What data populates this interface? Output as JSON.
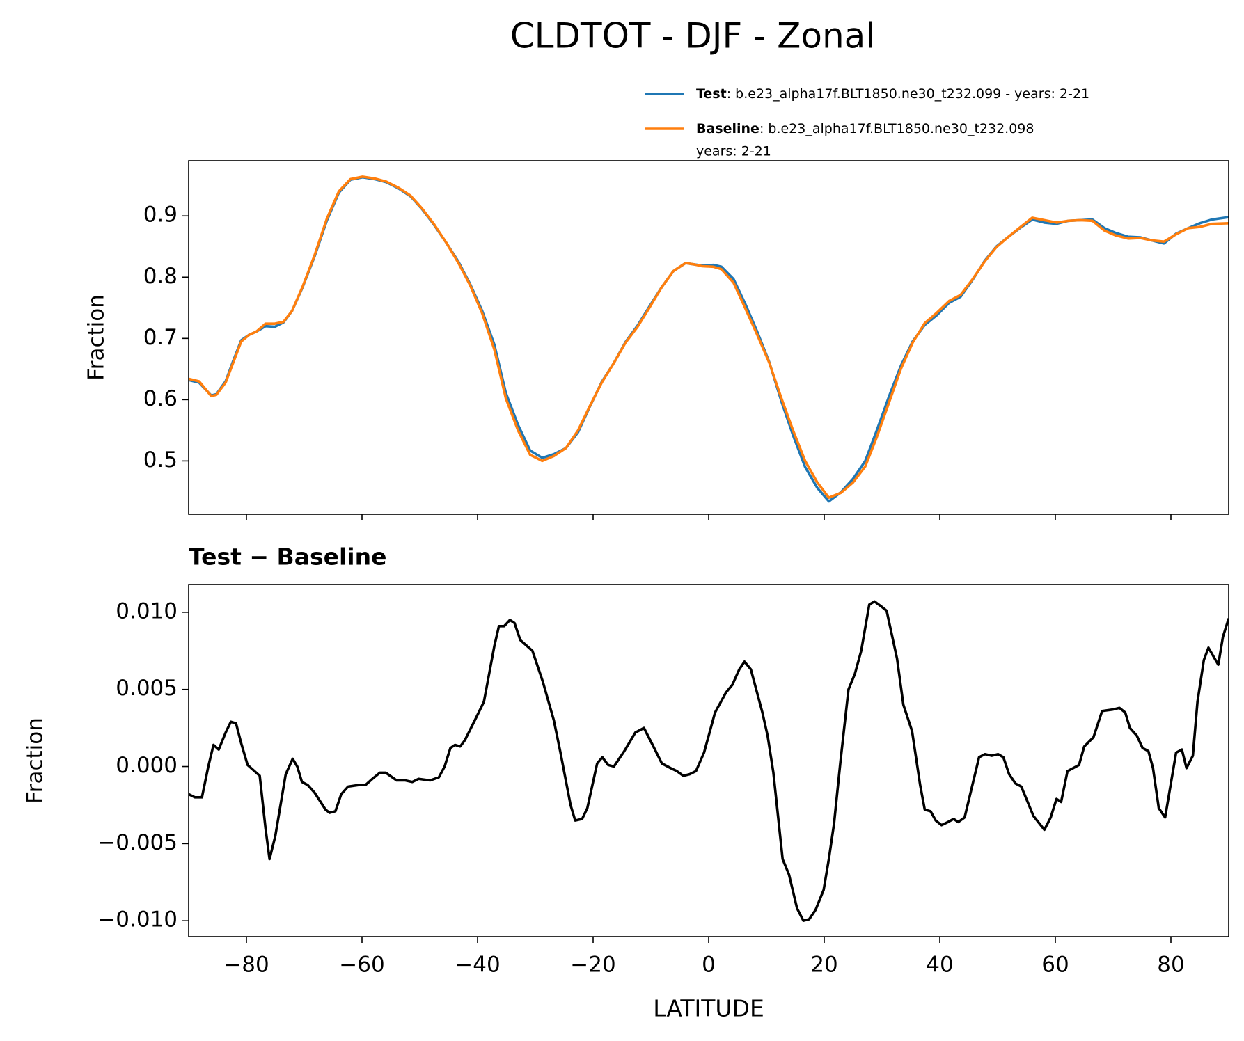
{
  "chart_data": [
    {
      "type": "line",
      "title": "CLDTOT - DJF - Zonal",
      "ylabel": "Fraction",
      "xlim": [
        -90,
        90
      ],
      "xticks": [
        -80,
        -60,
        -40,
        -20,
        0,
        20,
        40,
        60,
        80
      ],
      "ylim": [
        0.413,
        0.99
      ],
      "yticks": [
        0.5,
        0.6,
        0.7,
        0.8,
        0.9
      ],
      "x": [
        -90,
        -88.2,
        -86.1,
        -85.2,
        -83.6,
        -82.3,
        -80.9,
        -79.5,
        -78.3,
        -76.7,
        -75.1,
        -73.6,
        -72.1,
        -70.3,
        -68.2,
        -66.1,
        -64.0,
        -62.0,
        -59.9,
        -57.8,
        -55.8,
        -53.7,
        -51.6,
        -49.6,
        -47.5,
        -45.4,
        -43.3,
        -41.3,
        -39.2,
        -37.1,
        -35.1,
        -33.0,
        -30.9,
        -28.8,
        -26.8,
        -24.7,
        -22.6,
        -20.6,
        -18.5,
        -16.4,
        -14.4,
        -12.3,
        -10.2,
        -8.1,
        -6.1,
        -4.0,
        -2.6,
        -1.2,
        0.8,
        2.2,
        4.3,
        6.4,
        8.4,
        10.5,
        12.6,
        14.6,
        16.7,
        18.8,
        20.8,
        22.9,
        25.0,
        27.1,
        29.1,
        31.2,
        33.3,
        35.3,
        37.4,
        39.5,
        41.6,
        43.6,
        45.7,
        47.8,
        49.8,
        51.9,
        54.0,
        56.0,
        58.1,
        60.2,
        62.3,
        64.3,
        66.4,
        68.5,
        70.5,
        72.6,
        74.7,
        76.7,
        78.8,
        80.9,
        83.0,
        85.0,
        87.1,
        90
      ],
      "series": [
        {
          "name": "Test",
          "description": [
            ": b.e23_alpha17f.BLT1850.ne30_t232.099 - years: 2-21"
          ],
          "color": "#1f77b4",
          "values": [
            0.632,
            0.628,
            0.607,
            0.609,
            0.63,
            0.663,
            0.697,
            0.706,
            0.711,
            0.72,
            0.719,
            0.726,
            0.745,
            0.783,
            0.834,
            0.892,
            0.938,
            0.959,
            0.963,
            0.96,
            0.955,
            0.945,
            0.932,
            0.911,
            0.885,
            0.856,
            0.825,
            0.789,
            0.745,
            0.69,
            0.611,
            0.559,
            0.517,
            0.505,
            0.511,
            0.521,
            0.547,
            0.588,
            0.629,
            0.66,
            0.694,
            0.721,
            0.753,
            0.784,
            0.81,
            0.823,
            0.821,
            0.819,
            0.82,
            0.817,
            0.797,
            0.755,
            0.711,
            0.661,
            0.597,
            0.542,
            0.49,
            0.456,
            0.434,
            0.449,
            0.471,
            0.5,
            0.55,
            0.605,
            0.656,
            0.695,
            0.722,
            0.738,
            0.758,
            0.768,
            0.796,
            0.827,
            0.85,
            0.866,
            0.881,
            0.894,
            0.889,
            0.887,
            0.892,
            0.893,
            0.894,
            0.88,
            0.872,
            0.866,
            0.865,
            0.86,
            0.855,
            0.871,
            0.88,
            0.888,
            0.894,
            0.898
          ]
        },
        {
          "name": "Baseline",
          "description": [
            ": b.e23_alpha17f.BLT1850.ne30_t232.098",
            "years: 2-21"
          ],
          "color": "#ff7f0e",
          "values": [
            0.634,
            0.63,
            0.606,
            0.608,
            0.628,
            0.66,
            0.695,
            0.706,
            0.711,
            0.724,
            0.724,
            0.727,
            0.745,
            0.784,
            0.836,
            0.895,
            0.94,
            0.96,
            0.964,
            0.961,
            0.956,
            0.946,
            0.933,
            0.912,
            0.886,
            0.856,
            0.823,
            0.787,
            0.741,
            0.682,
            0.602,
            0.55,
            0.51,
            0.5,
            0.508,
            0.521,
            0.55,
            0.589,
            0.628,
            0.66,
            0.693,
            0.719,
            0.751,
            0.784,
            0.81,
            0.823,
            0.821,
            0.818,
            0.817,
            0.813,
            0.791,
            0.748,
            0.706,
            0.66,
            0.602,
            0.55,
            0.5,
            0.465,
            0.44,
            0.448,
            0.465,
            0.491,
            0.539,
            0.595,
            0.651,
            0.693,
            0.725,
            0.742,
            0.761,
            0.771,
            0.797,
            0.826,
            0.849,
            0.866,
            0.882,
            0.897,
            0.893,
            0.889,
            0.892,
            0.893,
            0.892,
            0.876,
            0.868,
            0.863,
            0.864,
            0.86,
            0.858,
            0.87,
            0.88,
            0.882,
            0.887,
            0.888
          ]
        }
      ]
    },
    {
      "type": "line",
      "title": "Test − Baseline",
      "ylabel": "Fraction",
      "xlabel": "LATITUDE",
      "xlim": [
        -90,
        90
      ],
      "xticks": [
        {
          "value": -80,
          "label": "−80"
        },
        {
          "value": -60,
          "label": "−60"
        },
        {
          "value": -40,
          "label": "−40"
        },
        {
          "value": -20,
          "label": "−20"
        },
        0,
        20,
        40,
        60,
        80
      ],
      "ylim": [
        -0.01103,
        0.0118
      ],
      "yticks": [
        {
          "value": -0.01,
          "label": "−0.010"
        },
        {
          "value": -0.005,
          "label": "−0.005"
        },
        {
          "value": 0,
          "label": "0.000"
        },
        {
          "value": 0.005,
          "label": "0.005"
        },
        {
          "value": 0.01,
          "label": "0.010"
        }
      ],
      "x": [
        -90,
        -88.9,
        -87.7,
        -86.6,
        -85.7,
        -84.8,
        -83.6,
        -82.7,
        -81.8,
        -80.9,
        -79.8,
        -77.7,
        -76.7,
        -76.0,
        -75.0,
        -73.2,
        -72.0,
        -71.2,
        -70.4,
        -69.4,
        -68.2,
        -66.3,
        -65.6,
        -64.6,
        -63.6,
        -62.4,
        -60.5,
        -59.4,
        -58.2,
        -56.9,
        -55.9,
        -54.0,
        -52.5,
        -51.3,
        -50.2,
        -48.2,
        -46.7,
        -45.7,
        -44.7,
        -43.9,
        -43.0,
        -42.2,
        -40.2,
        -38.9,
        -37.1,
        -36.3,
        -35.4,
        -34.4,
        -33.6,
        -32.6,
        -30.5,
        -28.7,
        -26.8,
        -25.7,
        -23.9,
        -23.1,
        -21.9,
        -21.0,
        -19.3,
        -18.4,
        -17.4,
        -16.4,
        -14.6,
        -12.7,
        -11.2,
        -9.7,
        -8.1,
        -6.6,
        -5.5,
        -4.4,
        -3.3,
        -2.2,
        -0.8,
        1.1,
        3.0,
        4.1,
        5.3,
        6.2,
        7.3,
        9.3,
        10.2,
        11.2,
        12.8,
        13.9,
        15.3,
        16.4,
        17.4,
        18.5,
        19.9,
        20.8,
        21.7,
        22.8,
        24.2,
        25.3,
        26.4,
        27.8,
        28.7,
        29.8,
        30.8,
        32.6,
        33.7,
        35.2,
        36.6,
        37.4,
        38.4,
        39.3,
        40.3,
        41.4,
        42.4,
        43.2,
        44.3,
        46.8,
        47.8,
        49.0,
        50.1,
        51.0,
        52.0,
        53.1,
        54.1,
        56.2,
        58.1,
        59.2,
        60.2,
        61.0,
        62.1,
        64.1,
        65.0,
        66.6,
        68.1,
        70.0,
        71.1,
        72.1,
        72.9,
        74.1,
        75.1,
        76.1,
        76.9,
        77.9,
        79.0,
        80.9,
        81.9,
        82.7,
        83.8,
        84.6,
        85.7,
        86.5,
        88.2,
        89.0,
        90
      ],
      "series": [
        {
          "color": "#000000",
          "values": [
            -0.0018,
            -0.002,
            -0.002,
            0.0,
            0.0014,
            0.0011,
            0.0022,
            0.0029,
            0.0028,
            0.0015,
            0.0001,
            -0.0006,
            -0.004,
            -0.006,
            -0.0045,
            -0.0005,
            0.0005,
            0.0,
            -0.001,
            -0.0012,
            -0.0017,
            -0.0028,
            -0.003,
            -0.0029,
            -0.0018,
            -0.0013,
            -0.0012,
            -0.0012,
            -0.0008,
            -0.0004,
            -0.0004,
            -0.0009,
            -0.0009,
            -0.001,
            -0.0008,
            -0.0009,
            -0.0007,
            0.0,
            0.0012,
            0.0014,
            0.0013,
            0.0017,
            0.0032,
            0.0042,
            0.0078,
            0.0091,
            0.0091,
            0.0095,
            0.0093,
            0.0082,
            0.0075,
            0.0055,
            0.003,
            0.001,
            -0.0025,
            -0.0035,
            -0.0034,
            -0.0027,
            0.0002,
            0.0006,
            0.0001,
            0.0,
            0.001,
            0.0022,
            0.0025,
            0.0014,
            0.0002,
            -0.0001,
            -0.0003,
            -0.0006,
            -0.0005,
            -0.0003,
            0.0009,
            0.0035,
            0.0048,
            0.0053,
            0.0063,
            0.0068,
            0.0063,
            0.0035,
            0.002,
            -0.0004,
            -0.006,
            -0.007,
            -0.0092,
            -0.01,
            -0.0099,
            -0.0093,
            -0.008,
            -0.006,
            -0.0037,
            0.0003,
            0.005,
            0.006,
            0.0075,
            0.0105,
            0.0107,
            0.0104,
            0.0101,
            0.007,
            0.004,
            0.0023,
            -0.0012,
            -0.0028,
            -0.0029,
            -0.0035,
            -0.0038,
            -0.0036,
            -0.0034,
            -0.0036,
            -0.0033,
            0.0006,
            0.0008,
            0.0007,
            0.0008,
            0.0006,
            -0.0005,
            -0.0011,
            -0.0013,
            -0.0032,
            -0.0041,
            -0.0033,
            -0.0021,
            -0.0023,
            -0.0003,
            0.0001,
            0.0013,
            0.0019,
            0.0036,
            0.0037,
            0.0038,
            0.0035,
            0.0025,
            0.002,
            0.0012,
            0.001,
            -0.0001,
            -0.0027,
            -0.0033,
            0.0009,
            0.0011,
            -0.0001,
            0.0007,
            0.0042,
            0.0069,
            0.0077,
            0.0066,
            0.0084,
            0.0096
          ]
        }
      ]
    }
  ]
}
